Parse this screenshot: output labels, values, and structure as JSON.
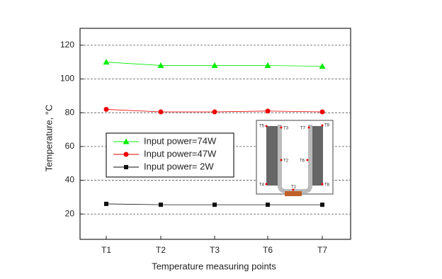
{
  "chart_data": {
    "type": "line",
    "x_label": "Temperature measuring points",
    "y_label": "Temperature, °C",
    "categories": [
      "T1",
      "T2",
      "T3",
      "T6",
      "T7"
    ],
    "series": [
      {
        "name": "Input power=74W",
        "color": "#00ee00",
        "marker": "triangle",
        "values": [
          110,
          108,
          108,
          108,
          107.5
        ]
      },
      {
        "name": "Input power=47W",
        "color": "#ee0000",
        "marker": "circle",
        "values": [
          82,
          80.5,
          80.5,
          81,
          80.5
        ]
      },
      {
        "name": "Input power= 2W",
        "color": "#111111",
        "marker": "square",
        "values": [
          26,
          25.5,
          25.5,
          25.5,
          25.5
        ]
      }
    ],
    "ylim": [
      5,
      130
    ],
    "yticks": [
      20,
      40,
      60,
      80,
      100,
      120
    ],
    "grid": true,
    "inset_labels": [
      "T5",
      "T3",
      "T7",
      "T9",
      "T2",
      "T6",
      "T4",
      "T1",
      "T8"
    ]
  }
}
